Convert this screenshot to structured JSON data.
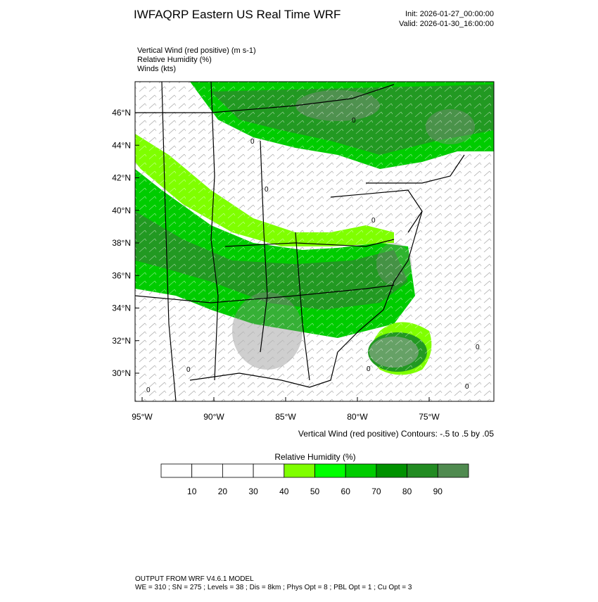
{
  "header": {
    "title": "IWFAQRP Eastern US Real Time WRF",
    "init": "Init: 2026-01-27_00:00:00",
    "valid": "Valid: 2026-01-30_16:00:00"
  },
  "fields": [
    "Vertical Wind (red positive)   (m s-1)",
    "Relative Humidity   (%)",
    "Winds   (kts)"
  ],
  "map": {
    "lat_labels": [
      "46°N",
      "44°N",
      "42°N",
      "40°N",
      "38°N",
      "36°N",
      "34°N",
      "32°N",
      "30°N"
    ],
    "lon_labels": [
      "95°W",
      "90°W",
      "85°W",
      "80°W",
      "75°W"
    ],
    "contour_label": "0",
    "contour_note": "Vertical Wind (red positive) Contours: -.5 to .5 by .05"
  },
  "colorbar": {
    "title": "Relative Humidity  (%)",
    "labels": [
      "10",
      "20",
      "30",
      "40",
      "50",
      "60",
      "70",
      "80",
      "90"
    ],
    "colors": [
      "#ffffff",
      "#ffffff",
      "#ffffff",
      "#ffffff",
      "#7fff00",
      "#00ff00",
      "#00cc00",
      "#009100",
      "#228b22",
      "#4f8a4f"
    ]
  },
  "footer": {
    "line1": "OUTPUT FROM WRF V4.6.1 MODEL",
    "line2": "WE = 310 ; SN = 275 ; Levels = 38 ; Dis = 8km ; Phys Opt = 8 ; PBL Opt = 1 ; Cu Opt = 3"
  }
}
